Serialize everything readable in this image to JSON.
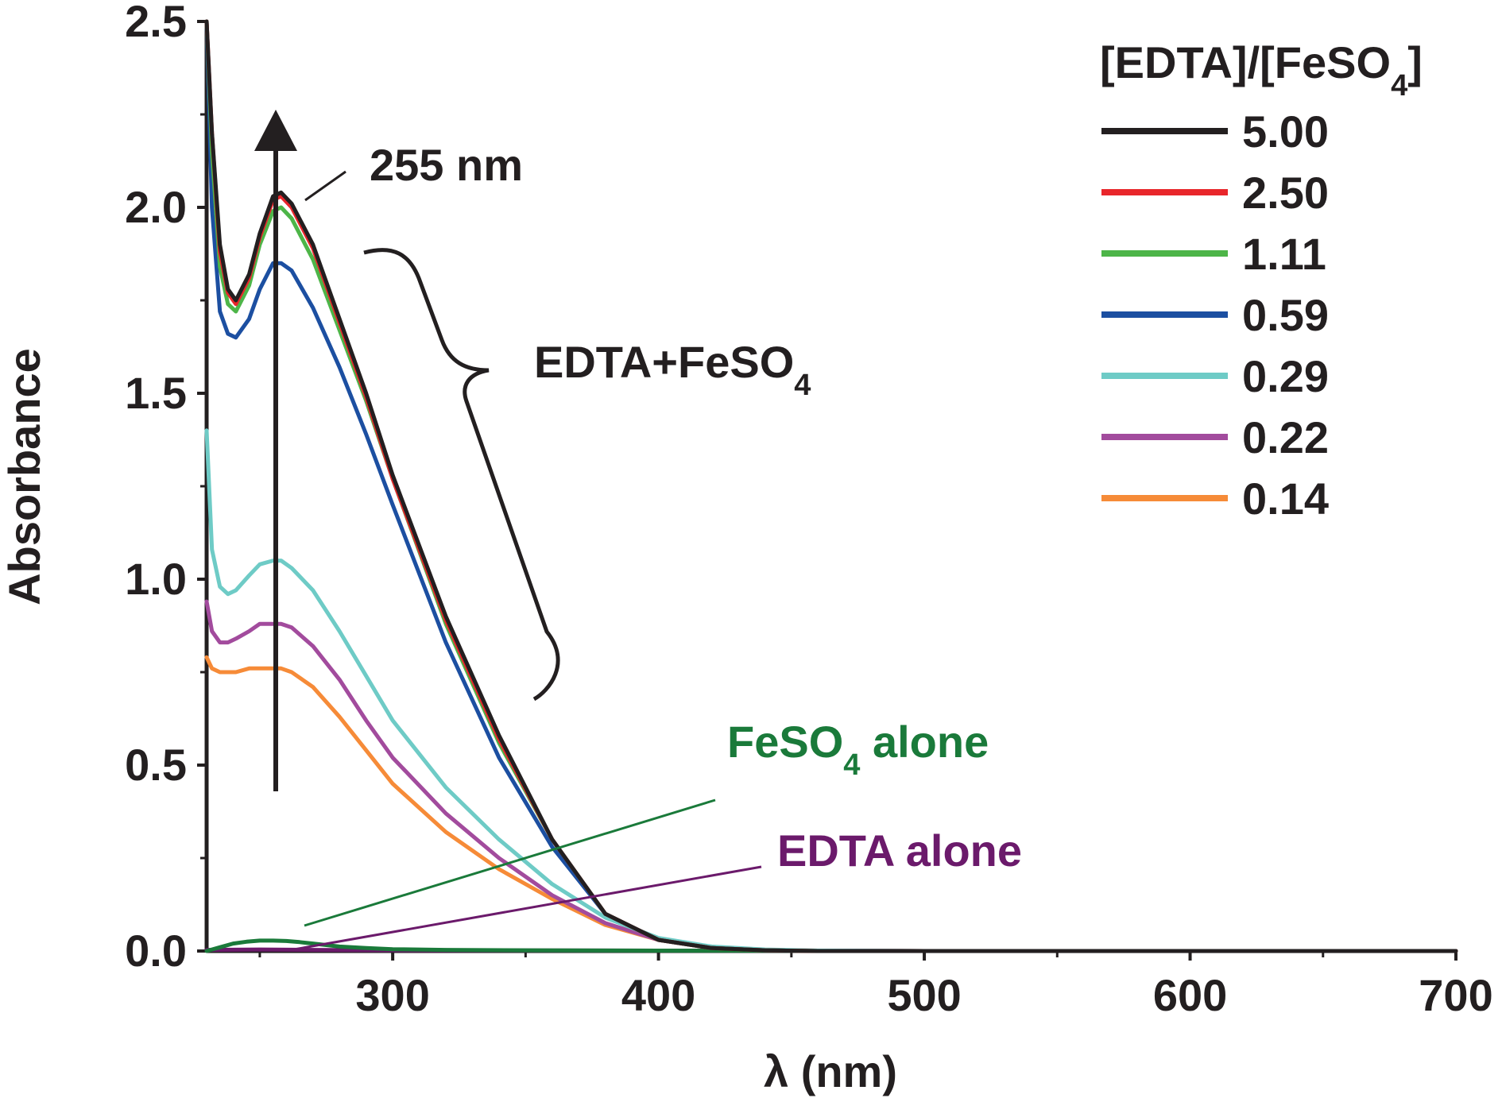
{
  "chart_data": {
    "type": "line",
    "xlabel": "λ (nm)",
    "ylabel": "Absorbance",
    "xlim": [
      230,
      700
    ],
    "ylim": [
      0,
      2.5
    ],
    "x_ticks": [
      300,
      400,
      500,
      600,
      700
    ],
    "x_tick_labels": [
      "300",
      "400",
      "500",
      "600",
      "700"
    ],
    "x_minor_ticks": [
      250,
      350,
      450,
      550,
      650
    ],
    "y_ticks": [
      0,
      0.5,
      1.0,
      1.5,
      2.0,
      2.5
    ],
    "y_tick_labels": [
      "0.0",
      "0.5",
      "1.0",
      "1.5",
      "2.0",
      "2.5"
    ],
    "y_minor_ticks": [
      0.25,
      0.75,
      1.25,
      1.75,
      2.25
    ],
    "legend": {
      "title": "[EDTA]/[FeSO",
      "title_subscript": "4",
      "title_end": "]",
      "placement": "top-right"
    },
    "series": [
      {
        "name": "5.00",
        "color": "#231f20",
        "x": [
          230,
          232,
          235,
          238,
          241,
          246,
          250,
          255,
          258,
          262,
          270,
          280,
          290,
          300,
          320,
          340,
          360,
          380,
          400,
          420,
          440,
          460,
          500,
          600,
          700
        ],
        "y": [
          2.5,
          2.2,
          1.9,
          1.78,
          1.75,
          1.82,
          1.93,
          2.03,
          2.04,
          2.01,
          1.9,
          1.7,
          1.5,
          1.28,
          0.9,
          0.58,
          0.3,
          0.1,
          0.03,
          0.008,
          0.002,
          0,
          0,
          0,
          0
        ]
      },
      {
        "name": "2.50",
        "color": "#e8262b",
        "x": [
          230,
          232,
          235,
          238,
          241,
          246,
          250,
          255,
          258,
          262,
          270,
          280,
          290,
          300,
          320,
          340,
          360,
          380,
          400,
          420,
          440,
          460,
          500,
          600,
          700
        ],
        "y": [
          2.5,
          2.2,
          1.88,
          1.77,
          1.74,
          1.81,
          1.92,
          2.02,
          2.03,
          2.0,
          1.89,
          1.69,
          1.49,
          1.27,
          0.89,
          0.57,
          0.3,
          0.1,
          0.03,
          0.008,
          0.002,
          0,
          0,
          0,
          0
        ]
      },
      {
        "name": "1.11",
        "color": "#4db548",
        "x": [
          230,
          232,
          235,
          238,
          241,
          246,
          250,
          255,
          258,
          262,
          270,
          280,
          290,
          300,
          320,
          340,
          360,
          380,
          400,
          420,
          440,
          460,
          500,
          600,
          700
        ],
        "y": [
          2.5,
          2.15,
          1.84,
          1.74,
          1.72,
          1.79,
          1.9,
          1.99,
          2.0,
          1.97,
          1.86,
          1.67,
          1.48,
          1.27,
          0.88,
          0.56,
          0.3,
          0.1,
          0.03,
          0.008,
          0.002,
          0,
          0,
          0,
          0
        ]
      },
      {
        "name": "0.59",
        "color": "#1c4fa1",
        "x": [
          230,
          232,
          235,
          238,
          241,
          246,
          250,
          255,
          258,
          262,
          270,
          280,
          290,
          300,
          320,
          340,
          360,
          380,
          400,
          420,
          440,
          460,
          500,
          600,
          700
        ],
        "y": [
          2.5,
          2.0,
          1.72,
          1.66,
          1.65,
          1.7,
          1.78,
          1.85,
          1.85,
          1.83,
          1.73,
          1.57,
          1.39,
          1.2,
          0.83,
          0.52,
          0.28,
          0.1,
          0.03,
          0.008,
          0.002,
          0,
          0,
          0,
          0
        ]
      },
      {
        "name": "0.29",
        "color": "#6ecbc6",
        "x": [
          230,
          232,
          235,
          238,
          241,
          246,
          250,
          255,
          258,
          262,
          270,
          280,
          290,
          300,
          320,
          340,
          360,
          380,
          400,
          420,
          440,
          460,
          500,
          600,
          700
        ],
        "y": [
          1.4,
          1.08,
          0.98,
          0.96,
          0.97,
          1.01,
          1.04,
          1.05,
          1.05,
          1.03,
          0.97,
          0.86,
          0.74,
          0.62,
          0.44,
          0.3,
          0.18,
          0.09,
          0.035,
          0.012,
          0.004,
          0.001,
          0,
          0,
          0
        ]
      },
      {
        "name": "0.22",
        "color": "#a24b9d",
        "x": [
          230,
          232,
          235,
          238,
          241,
          246,
          250,
          255,
          258,
          262,
          270,
          280,
          290,
          300,
          320,
          340,
          360,
          380,
          400,
          420,
          440,
          460,
          500,
          600,
          700
        ],
        "y": [
          0.94,
          0.86,
          0.83,
          0.83,
          0.84,
          0.86,
          0.88,
          0.88,
          0.88,
          0.87,
          0.82,
          0.73,
          0.62,
          0.52,
          0.37,
          0.25,
          0.15,
          0.075,
          0.03,
          0.01,
          0.003,
          0.001,
          0,
          0,
          0
        ]
      },
      {
        "name": "0.14",
        "color": "#f68b38",
        "x": [
          230,
          232,
          235,
          238,
          241,
          246,
          250,
          255,
          258,
          262,
          270,
          280,
          290,
          300,
          320,
          340,
          360,
          380,
          400,
          420,
          440,
          460,
          500,
          600,
          700
        ],
        "y": [
          0.79,
          0.76,
          0.75,
          0.75,
          0.75,
          0.76,
          0.76,
          0.76,
          0.76,
          0.75,
          0.71,
          0.63,
          0.54,
          0.45,
          0.32,
          0.22,
          0.14,
          0.07,
          0.03,
          0.01,
          0.003,
          0.001,
          0,
          0,
          0
        ]
      },
      {
        "name": "FeSO4 alone",
        "color": "#1a7a3a",
        "in_legend": false,
        "x": [
          230,
          235,
          240,
          245,
          250,
          255,
          260,
          265,
          270,
          275,
          280,
          290,
          300,
          320,
          350,
          400,
          500,
          600,
          700
        ],
        "y": [
          0,
          0.01,
          0.02,
          0.025,
          0.028,
          0.028,
          0.027,
          0.024,
          0.02,
          0.016,
          0.012,
          0.008,
          0.005,
          0.003,
          0.002,
          0.001,
          0,
          0,
          0
        ]
      },
      {
        "name": "EDTA alone",
        "color": "#6b1a6b",
        "in_legend": false,
        "x": [
          230,
          250,
          270,
          300,
          400,
          500,
          600,
          700
        ],
        "y": [
          0.003,
          0.004,
          0.003,
          0.002,
          0.001,
          0,
          0,
          0
        ]
      }
    ],
    "annotations": {
      "peak_label": "255 nm",
      "peak_x": 255,
      "group_label": "EDTA+FeSO",
      "group_label_subscript": "4",
      "feso4_alone_label": "FeSO",
      "feso4_alone_label_subscript": "4",
      "feso4_alone_label_end": " alone",
      "feso4_alone_color": "#1a7a3a",
      "edta_alone_label": "EDTA alone",
      "edta_alone_color": "#6b1a6b"
    }
  }
}
